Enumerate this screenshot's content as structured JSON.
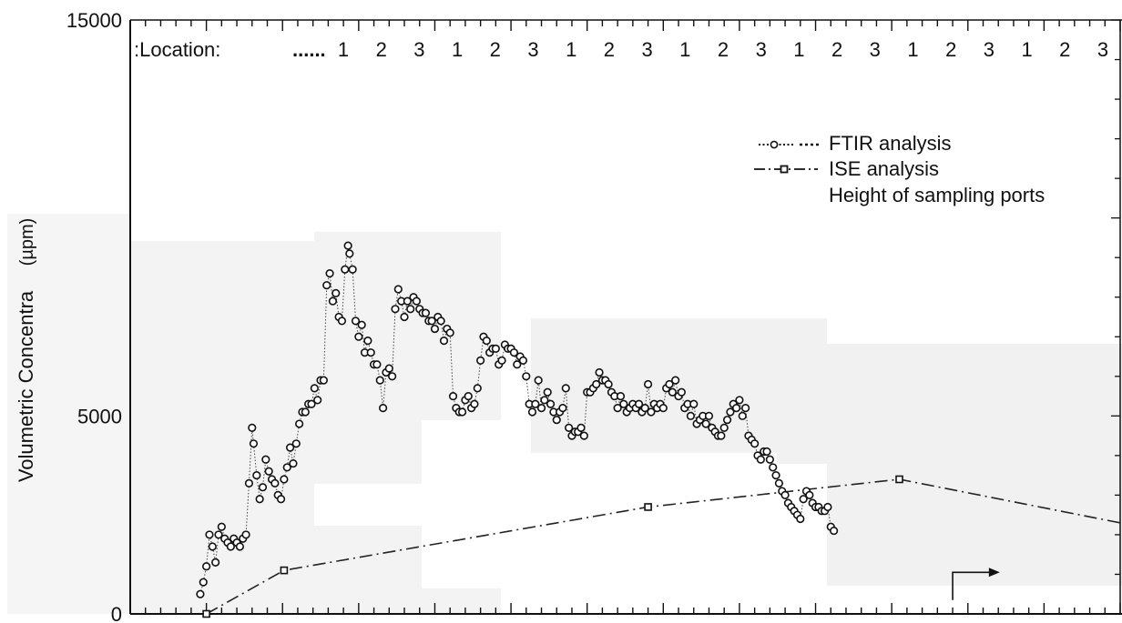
{
  "chart_data": {
    "type": "scatter",
    "ylabel": "Volumetric Concentra",
    "ylabel_unit": "(µpm)",
    "ylim": [
      0,
      15000
    ],
    "yticks": [
      {
        "value": 0,
        "label": "0"
      },
      {
        "value": 5000,
        "label": "5000"
      },
      {
        "value": 15000,
        "label": "15000"
      }
    ],
    "xlim": [
      0,
      650
    ],
    "location_label": ":Location:",
    "location_prefix": "......",
    "location_sequence": [
      "1",
      "2",
      "3",
      "1",
      "2",
      "3",
      "1",
      "2",
      "3",
      "1",
      "2",
      "3",
      "1",
      "2",
      "3",
      "1",
      "2",
      "3",
      "1",
      "2",
      "3"
    ],
    "legend": {
      "items": [
        {
          "label": "FTIR analysis",
          "style": "dotted-circle"
        },
        {
          "label": "ISE analysis",
          "style": "dashdot-square"
        },
        {
          "label": "Height of sampling ports",
          "style": "none"
        }
      ]
    },
    "series": [
      {
        "name": "FTIR analysis",
        "style": "dotted-circle",
        "color": "#222222",
        "points": [
          [
            46,
            500
          ],
          [
            48,
            800
          ],
          [
            50,
            1200
          ],
          [
            52,
            2000
          ],
          [
            54,
            1700
          ],
          [
            56,
            1300
          ],
          [
            58,
            2000
          ],
          [
            60,
            2200
          ],
          [
            62,
            1900
          ],
          [
            64,
            1800
          ],
          [
            66,
            1700
          ],
          [
            68,
            1900
          ],
          [
            70,
            1800
          ],
          [
            72,
            1700
          ],
          [
            74,
            1900
          ],
          [
            76,
            2000
          ],
          [
            78,
            3300
          ],
          [
            80,
            4700
          ],
          [
            81,
            4300
          ],
          [
            83,
            3500
          ],
          [
            85,
            2900
          ],
          [
            87,
            3200
          ],
          [
            89,
            3900
          ],
          [
            91,
            3600
          ],
          [
            93,
            3400
          ],
          [
            95,
            3300
          ],
          [
            97,
            3000
          ],
          [
            99,
            2900
          ],
          [
            101,
            3400
          ],
          [
            103,
            3700
          ],
          [
            105,
            4200
          ],
          [
            107,
            3800
          ],
          [
            109,
            4300
          ],
          [
            111,
            4800
          ],
          [
            113,
            5100
          ],
          [
            115,
            5100
          ],
          [
            117,
            5300
          ],
          [
            119,
            5300
          ],
          [
            121,
            5700
          ],
          [
            123,
            5400
          ],
          [
            125,
            5900
          ],
          [
            127,
            5900
          ],
          [
            129,
            8300
          ],
          [
            131,
            8600
          ],
          [
            133,
            7900
          ],
          [
            135,
            8100
          ],
          [
            137,
            7500
          ],
          [
            139,
            7400
          ],
          [
            141,
            8700
          ],
          [
            143,
            9300
          ],
          [
            144,
            9100
          ],
          [
            146,
            8700
          ],
          [
            148,
            7400
          ],
          [
            150,
            7000
          ],
          [
            152,
            7300
          ],
          [
            154,
            6600
          ],
          [
            156,
            6900
          ],
          [
            158,
            6600
          ],
          [
            160,
            6300
          ],
          [
            162,
            6300
          ],
          [
            164,
            5900
          ],
          [
            166,
            5200
          ],
          [
            168,
            6100
          ],
          [
            170,
            6200
          ],
          [
            172,
            6000
          ],
          [
            174,
            7700
          ],
          [
            176,
            8200
          ],
          [
            178,
            7900
          ],
          [
            180,
            7500
          ],
          [
            182,
            7900
          ],
          [
            184,
            7700
          ],
          [
            186,
            8000
          ],
          [
            188,
            7900
          ],
          [
            190,
            7700
          ],
          [
            192,
            7600
          ],
          [
            194,
            7600
          ],
          [
            196,
            7400
          ],
          [
            198,
            7400
          ],
          [
            200,
            7200
          ],
          [
            202,
            7500
          ],
          [
            204,
            7400
          ],
          [
            206,
            6900
          ],
          [
            208,
            7200
          ],
          [
            210,
            7100
          ],
          [
            212,
            5500
          ],
          [
            214,
            5200
          ],
          [
            216,
            5100
          ],
          [
            218,
            5100
          ],
          [
            220,
            5400
          ],
          [
            222,
            5500
          ],
          [
            224,
            5200
          ],
          [
            226,
            5300
          ],
          [
            228,
            5700
          ],
          [
            230,
            6400
          ],
          [
            232,
            7000
          ],
          [
            234,
            6900
          ],
          [
            236,
            6600
          ],
          [
            238,
            6700
          ],
          [
            240,
            6700
          ],
          [
            242,
            6300
          ],
          [
            244,
            6400
          ],
          [
            246,
            6800
          ],
          [
            248,
            6700
          ],
          [
            250,
            6700
          ],
          [
            252,
            6600
          ],
          [
            254,
            6300
          ],
          [
            256,
            6500
          ],
          [
            258,
            6400
          ],
          [
            260,
            6000
          ],
          [
            262,
            5300
          ],
          [
            264,
            5100
          ],
          [
            266,
            5300
          ],
          [
            268,
            5900
          ],
          [
            270,
            5200
          ],
          [
            272,
            5400
          ],
          [
            274,
            5600
          ],
          [
            276,
            5300
          ],
          [
            278,
            5100
          ],
          [
            280,
            4900
          ],
          [
            282,
            5100
          ],
          [
            284,
            5200
          ],
          [
            286,
            5700
          ],
          [
            288,
            4700
          ],
          [
            290,
            4500
          ],
          [
            292,
            4600
          ],
          [
            294,
            4600
          ],
          [
            296,
            4700
          ],
          [
            298,
            4500
          ],
          [
            300,
            5600
          ],
          [
            302,
            5600
          ],
          [
            304,
            5700
          ],
          [
            306,
            5800
          ],
          [
            308,
            6100
          ],
          [
            310,
            5900
          ],
          [
            312,
            5900
          ],
          [
            314,
            5800
          ],
          [
            316,
            5600
          ],
          [
            318,
            5500
          ],
          [
            320,
            5200
          ],
          [
            322,
            5500
          ],
          [
            324,
            5300
          ],
          [
            326,
            5100
          ],
          [
            328,
            5200
          ],
          [
            330,
            5300
          ],
          [
            332,
            5200
          ],
          [
            334,
            5300
          ],
          [
            336,
            5100
          ],
          [
            338,
            5200
          ],
          [
            340,
            5800
          ],
          [
            342,
            5100
          ],
          [
            344,
            5300
          ],
          [
            346,
            5200
          ],
          [
            348,
            5300
          ],
          [
            350,
            5200
          ],
          [
            352,
            5700
          ],
          [
            354,
            5800
          ],
          [
            356,
            5600
          ],
          [
            358,
            5900
          ],
          [
            360,
            5500
          ],
          [
            362,
            5600
          ],
          [
            364,
            5200
          ],
          [
            366,
            5300
          ],
          [
            368,
            5000
          ],
          [
            370,
            5300
          ],
          [
            372,
            4800
          ],
          [
            374,
            4900
          ],
          [
            376,
            5000
          ],
          [
            378,
            4800
          ],
          [
            380,
            5000
          ],
          [
            382,
            4700
          ],
          [
            384,
            4600
          ],
          [
            386,
            4500
          ],
          [
            388,
            4500
          ],
          [
            390,
            4700
          ],
          [
            392,
            4900
          ],
          [
            394,
            5100
          ],
          [
            396,
            5300
          ],
          [
            398,
            5200
          ],
          [
            400,
            5400
          ],
          [
            402,
            5000
          ],
          [
            404,
            5200
          ],
          [
            406,
            4500
          ],
          [
            408,
            4400
          ],
          [
            410,
            4300
          ],
          [
            412,
            4000
          ],
          [
            414,
            3900
          ],
          [
            416,
            4100
          ],
          [
            418,
            4100
          ],
          [
            420,
            3900
          ],
          [
            422,
            3700
          ],
          [
            424,
            3500
          ],
          [
            426,
            3300
          ],
          [
            428,
            3100
          ],
          [
            430,
            3000
          ],
          [
            432,
            2800
          ],
          [
            434,
            2700
          ],
          [
            436,
            2600
          ],
          [
            438,
            2500
          ],
          [
            440,
            2400
          ],
          [
            442,
            2900
          ],
          [
            444,
            3100
          ],
          [
            446,
            3000
          ],
          [
            448,
            2800
          ],
          [
            450,
            2700
          ],
          [
            452,
            2700
          ],
          [
            454,
            2600
          ],
          [
            456,
            2600
          ],
          [
            458,
            2700
          ],
          [
            460,
            2200
          ],
          [
            462,
            2100
          ]
        ]
      },
      {
        "name": "ISE analysis",
        "style": "dashdot-square",
        "color": "#222222",
        "points": [
          [
            50,
            0
          ],
          [
            101,
            1100
          ],
          [
            340,
            2700
          ],
          [
            505,
            3400
          ],
          [
            650,
            2300
          ]
        ]
      }
    ],
    "annotation_arrow": {
      "label": "",
      "from_value": [
        540,
        350
      ],
      "to_value": [
        565,
        1050
      ]
    }
  }
}
